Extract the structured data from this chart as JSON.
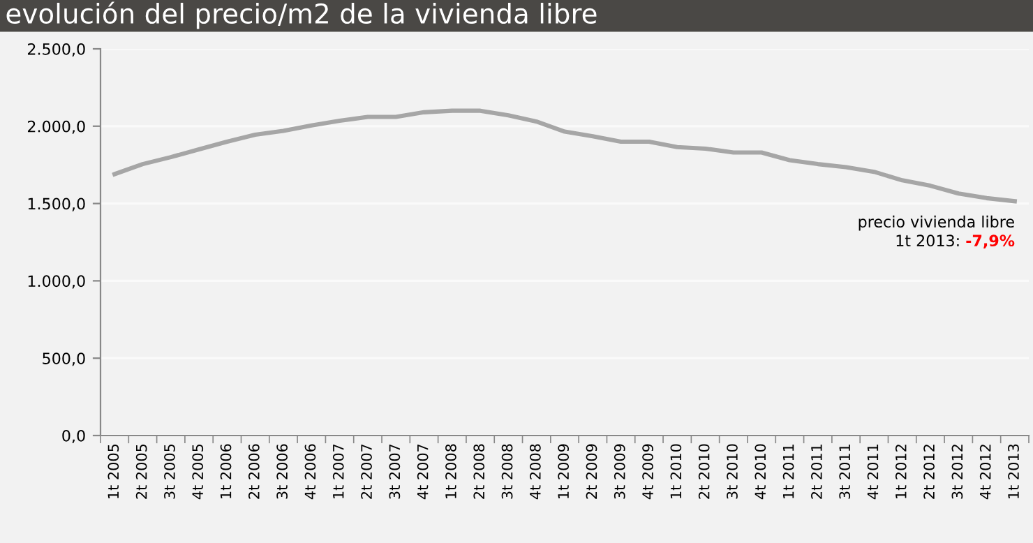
{
  "chart_data": {
    "type": "line",
    "title": "evolución del precio/m2 de la vivienda libre",
    "categories": [
      "1t 2005",
      "2t 2005",
      "3t 2005",
      "4t 2005",
      "1t 2006",
      "2t 2006",
      "3t 2006",
      "4t 2006",
      "1t 2007",
      "2t 2007",
      "3t 2007",
      "4t 2007",
      "1t 2008",
      "2t 2008",
      "3t 2008",
      "4t 2008",
      "1t 2009",
      "2t 2009",
      "3t 2009",
      "4t 2009",
      "1t 2010",
      "2t 2010",
      "3t 2010",
      "4t 2010",
      "1t 2011",
      "2t 2011",
      "3t 2011",
      "4t 2011",
      "1t 2012",
      "2t 2012",
      "3t 2012",
      "4t 2012",
      "1t 2013"
    ],
    "series": [
      {
        "color": "#a6a6a6",
        "values": [
          1690,
          1755,
          1800,
          1850,
          1900,
          1945,
          1970,
          2005,
          2035,
          2060,
          2060,
          2090,
          2100,
          2100,
          2070,
          2030,
          1965,
          1935,
          1900,
          1900,
          1865,
          1855,
          1830,
          1830,
          1780,
          1755,
          1735,
          1705,
          1650,
          1615,
          1565,
          1535,
          1515
        ]
      }
    ],
    "ylim": [
      0,
      2500
    ],
    "yticks": [
      {
        "value": 0,
        "label": "0,0"
      },
      {
        "value": 500,
        "label": "500,0"
      },
      {
        "value": 1000,
        "label": "1.000,0"
      },
      {
        "value": 1500,
        "label": "1.500,0"
      },
      {
        "value": 2000,
        "label": "2.000,0"
      },
      {
        "value": 2500,
        "label": "2.500,0"
      }
    ],
    "grid": "y",
    "legend": false,
    "marker": "none",
    "line_style": "solid",
    "annotations": [
      "precio vivienda libre",
      "1t 2013:",
      "-7,9%"
    ]
  }
}
